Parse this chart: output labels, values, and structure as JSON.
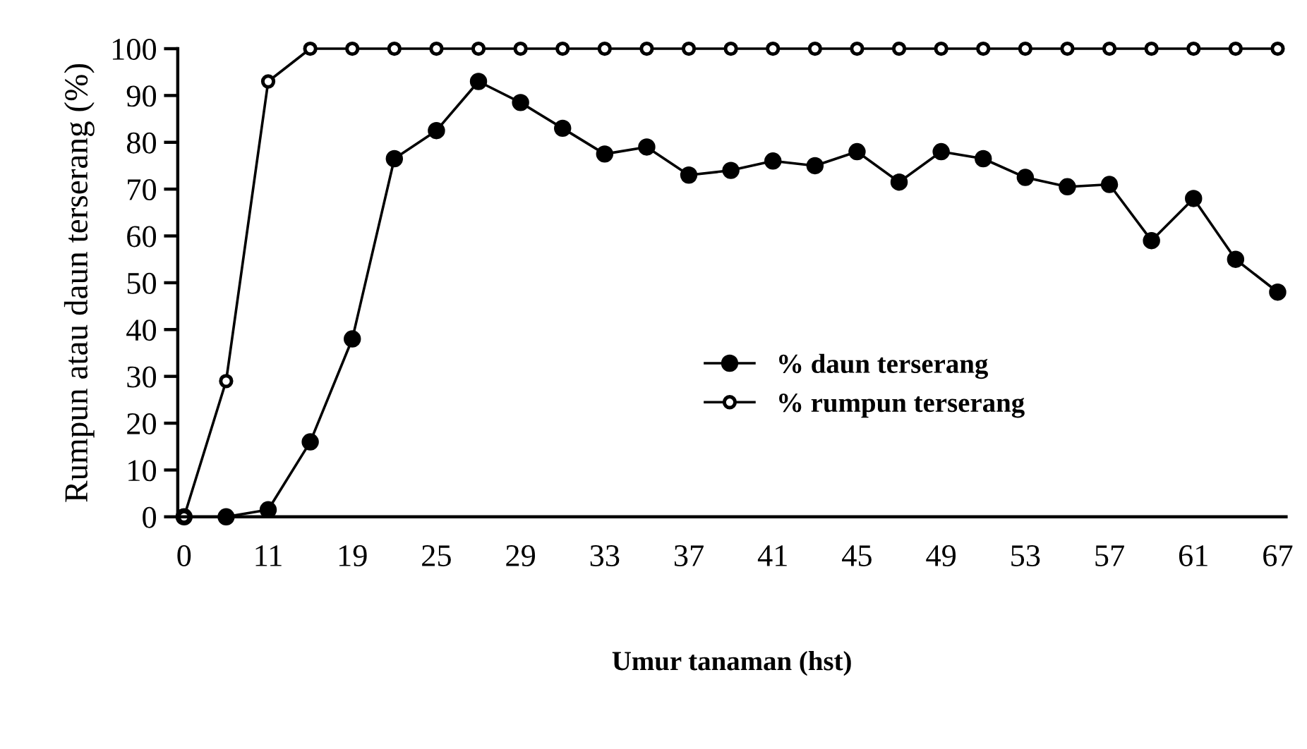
{
  "chart_data": {
    "type": "line",
    "xlabel": "Umur tanaman (hst)",
    "ylabel": "Rumpun atau daun terserang (%)",
    "categories": [
      "0",
      null,
      "11",
      null,
      "19",
      null,
      "25",
      null,
      "29",
      null,
      "33",
      null,
      "37",
      null,
      "41",
      null,
      "45",
      null,
      "49",
      null,
      "53",
      null,
      "57",
      null,
      "61",
      null,
      "67"
    ],
    "series": [
      {
        "name": "% daun terserang",
        "color": "#000000",
        "marker": "circle",
        "values": [
          0,
          0,
          1.5,
          16,
          38,
          76.5,
          82.5,
          93,
          88.5,
          83,
          77.5,
          79,
          73,
          74,
          76,
          75,
          78,
          71.5,
          78,
          76.5,
          72.5,
          70.5,
          71,
          59,
          68,
          55,
          48
        ]
      },
      {
        "name": "% rumpun terserang",
        "color": "#000000",
        "marker": "open circle",
        "values": [
          0,
          29,
          93,
          100,
          100,
          100,
          100,
          100,
          100,
          100,
          100,
          100,
          100,
          100,
          100,
          100,
          100,
          100,
          100,
          100,
          100,
          100,
          100,
          100,
          100,
          100,
          100
        ]
      }
    ],
    "ylim": [
      0,
      100
    ],
    "yticks": [
      0,
      10,
      20,
      30,
      40,
      50,
      60,
      70,
      80,
      90,
      100
    ],
    "grid": false,
    "legend": "center",
    "line_style": "solid"
  }
}
